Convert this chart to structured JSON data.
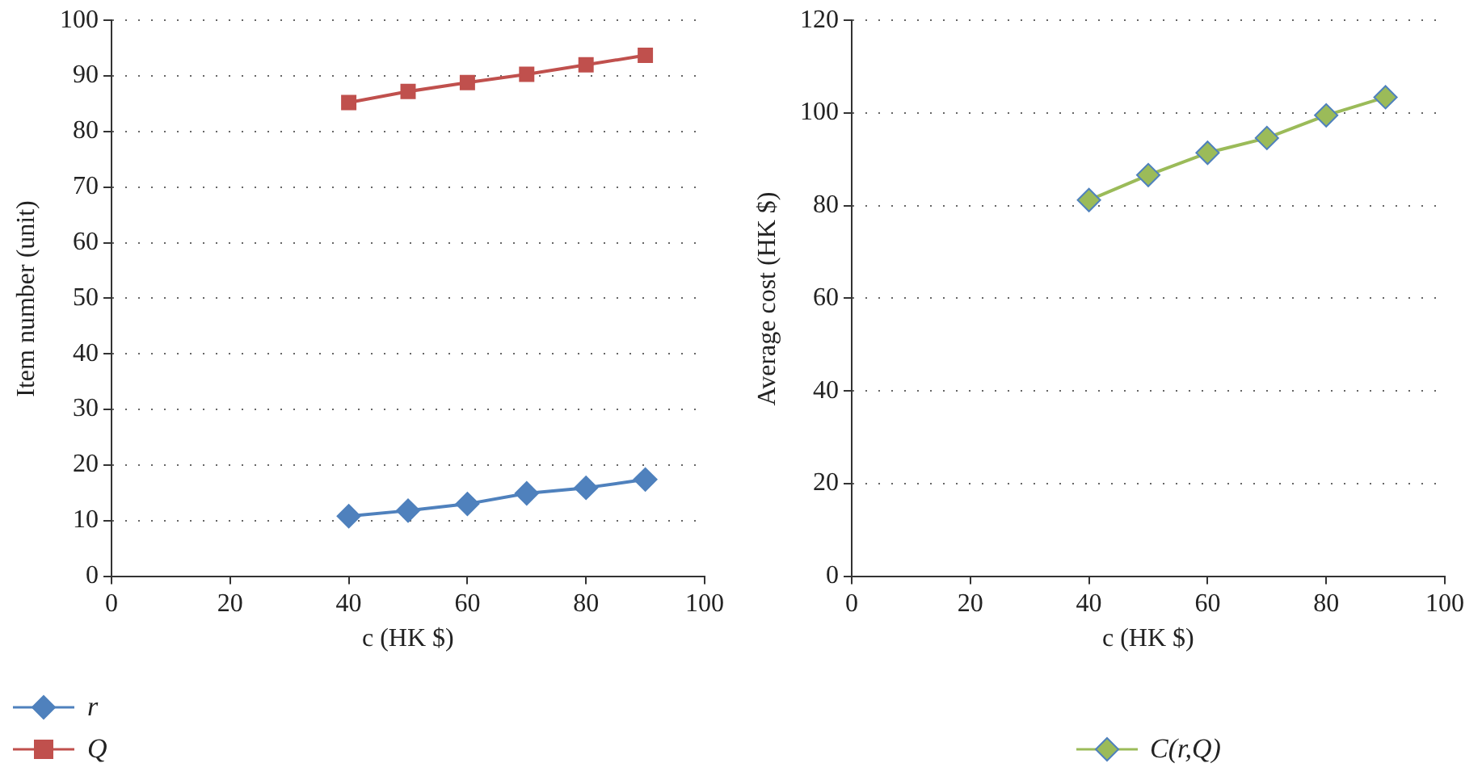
{
  "chart_data": [
    {
      "type": "line",
      "xlabel": "c (HK $)",
      "ylabel": "Item number (unit)",
      "x": [
        40,
        50,
        60,
        70,
        80,
        90
      ],
      "xlim": [
        0,
        100
      ],
      "xticks": [
        0,
        20,
        40,
        60,
        80,
        100
      ],
      "ylim": [
        0,
        100
      ],
      "yticks": [
        0,
        10,
        20,
        30,
        40,
        50,
        60,
        70,
        80,
        90,
        100
      ],
      "grid": "y",
      "legend": "bottom left",
      "series": [
        {
          "name": "r",
          "color": "#4f81bd",
          "marker": "diamond",
          "values": [
            10.8,
            11.8,
            13.0,
            14.9,
            15.9,
            17.4
          ]
        },
        {
          "name": "Q",
          "color": "#c0504d",
          "marker": "square",
          "values": [
            85.2,
            87.2,
            88.8,
            90.3,
            92.0,
            93.7
          ]
        }
      ]
    },
    {
      "type": "line",
      "xlabel": "c (HK $)",
      "ylabel": "Average cost (HK $)",
      "x": [
        40,
        50,
        60,
        70,
        80,
        90
      ],
      "xlim": [
        0,
        100
      ],
      "xticks": [
        0,
        20,
        40,
        60,
        80,
        100
      ],
      "ylim": [
        0,
        120
      ],
      "yticks": [
        0,
        20,
        40,
        60,
        80,
        100,
        120
      ],
      "grid": "y",
      "legend": "bottom",
      "series": [
        {
          "name": "C(r,Q)",
          "color": "#9bbb59",
          "marker": "diamond",
          "values": [
            81.2,
            86.6,
            91.4,
            94.6,
            99.5,
            103.4
          ]
        }
      ]
    }
  ]
}
